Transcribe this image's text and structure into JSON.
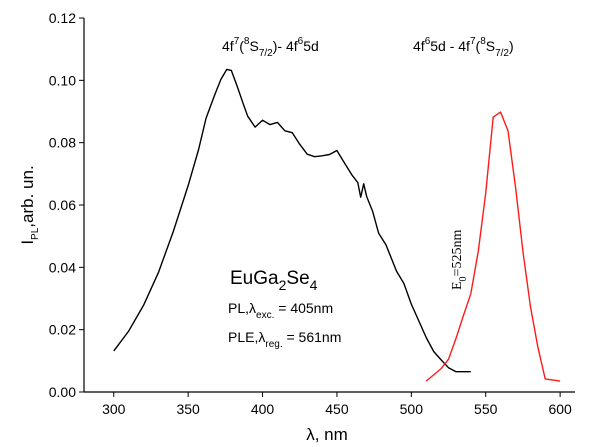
{
  "chart_data": {
    "type": "line",
    "xlabel": "λ, nm",
    "ylabel": "I_PL, arb. un.",
    "xlim": [
      280,
      610
    ],
    "ylim": [
      0.0,
      0.12
    ],
    "xticks": [
      300,
      350,
      400,
      450,
      500,
      550,
      600
    ],
    "yticks": [
      0.0,
      0.02,
      0.04,
      0.06,
      0.08,
      0.1,
      0.12
    ],
    "ytick_labels": [
      "0.00",
      "0.02",
      "0.04",
      "0.06",
      "0.08",
      "0.10",
      "0.12"
    ],
    "grid": false,
    "series": [
      {
        "name": "",
        "color": "#000000",
        "x": [
          300,
          310,
          320,
          330,
          340,
          350,
          357,
          362,
          368,
          372,
          376,
          379,
          383,
          387,
          390,
          395,
          400,
          405,
          410,
          415,
          420,
          425,
          430,
          435,
          440,
          445,
          450,
          455,
          460,
          464,
          466,
          468,
          470,
          474,
          478,
          483,
          490,
          495,
          500,
          505,
          510,
          515,
          520,
          525,
          530,
          535,
          540
        ],
        "y": [
          0.0132,
          0.0195,
          0.0278,
          0.0383,
          0.0515,
          0.0663,
          0.0778,
          0.0878,
          0.0955,
          0.1003,
          0.1035,
          0.1032,
          0.098,
          0.0925,
          0.0885,
          0.085,
          0.0872,
          0.0858,
          0.0865,
          0.0838,
          0.0832,
          0.0795,
          0.0763,
          0.0755,
          0.0758,
          0.0762,
          0.0775,
          0.0735,
          0.0697,
          0.0672,
          0.0625,
          0.0668,
          0.0627,
          0.058,
          0.051,
          0.0472,
          0.0388,
          0.0348,
          0.0282,
          0.0228,
          0.0175,
          0.013,
          0.0103,
          0.0078,
          0.0065,
          0.0065,
          0.0065
        ]
      },
      {
        "name": "",
        "color": "#ff1a1a",
        "x": [
          510,
          520,
          525,
          530,
          535,
          540,
          545,
          550,
          555,
          560,
          565,
          570,
          575,
          580,
          585,
          590,
          600
        ],
        "y": [
          0.0035,
          0.0075,
          0.0105,
          0.0172,
          0.0245,
          0.0315,
          0.0452,
          0.0638,
          0.0882,
          0.0898,
          0.0838,
          0.0658,
          0.0452,
          0.0275,
          0.0145,
          0.0042,
          0.0035
        ]
      }
    ],
    "annotations": {
      "ple_transition": {
        "main": "4f",
        "s1": "7",
        "mid1": "(",
        "s2": "8",
        "mid2": "S",
        "sub1": "7/2",
        "mid3": ")- 4f",
        "s3": "6",
        "tail": "5d"
      },
      "pl_transition": {
        "head": "4f",
        "s1": "6",
        "mid1": "5d - 4f",
        "s2": "7",
        "mid2": "(",
        "s3": "8",
        "mid3": "S",
        "sub1": "7/2",
        "tail": ")"
      },
      "compound": {
        "a": "EuGa",
        "sub1": "2",
        "b": "Se",
        "sub2": "4"
      },
      "pl_line": {
        "a": "PL,λ",
        "sub": "exc.",
        "b": " = 405nm"
      },
      "ple_line": {
        "a": "PLE,λ",
        "sub": "reg.",
        "b": " = 561nm"
      },
      "e0": {
        "a": "E",
        "sub": "0",
        "b": "=525nm"
      }
    },
    "axis_title_parts": {
      "x": "λ, nm",
      "y_main": "I",
      "y_sub": "PL",
      "y_rest": ",arb. un."
    }
  }
}
